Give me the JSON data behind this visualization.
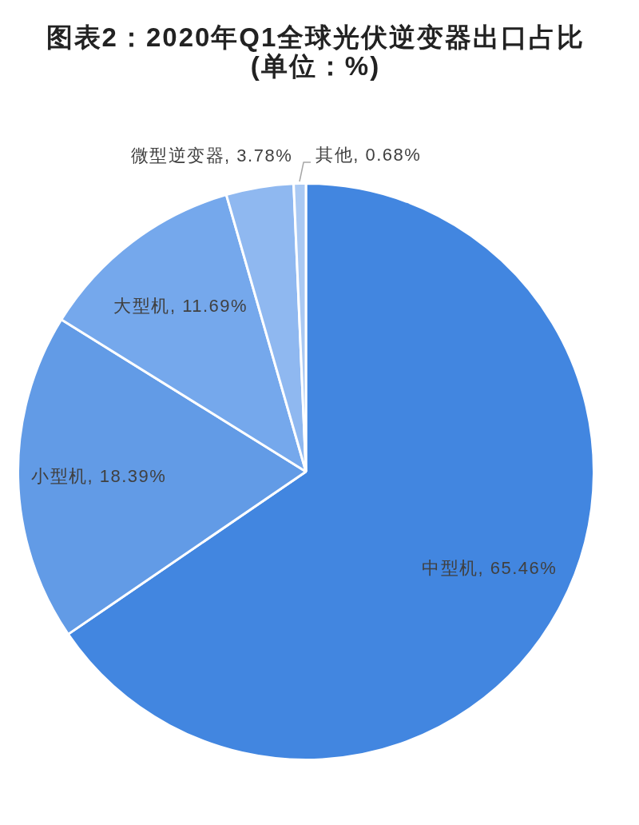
{
  "chart_data": {
    "type": "pie",
    "title": "图表2：2020年Q1全球光伏逆变器出口占比",
    "subtitle": "(单位：%)",
    "categories": [
      "中型机",
      "小型机",
      "大型机",
      "微型逆变器",
      "其他"
    ],
    "values": [
      65.46,
      18.39,
      11.69,
      3.78,
      0.68
    ],
    "colors": [
      "#4286e0",
      "#629be6",
      "#75a8ec",
      "#8fb8f0",
      "#aac9f3"
    ],
    "value_labels": [
      "65.46%",
      "18.39%",
      "11.69%",
      "3.78%",
      "0.68%"
    ]
  }
}
